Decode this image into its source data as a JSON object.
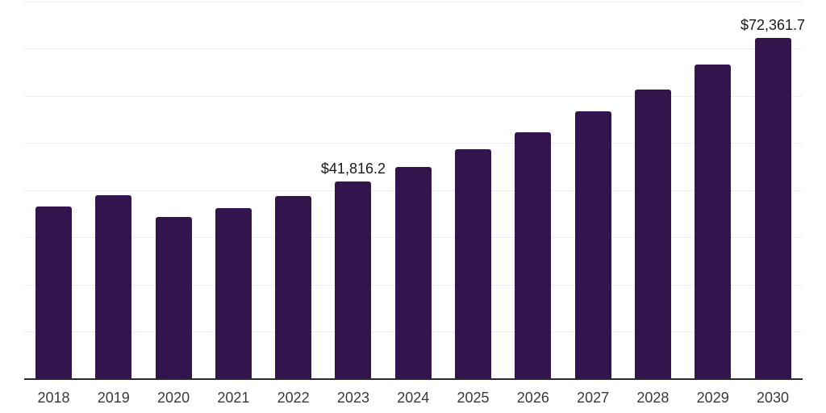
{
  "chart_data": {
    "type": "bar",
    "title": "",
    "xlabel": "",
    "ylabel": "",
    "categories": [
      "2018",
      "2019",
      "2020",
      "2021",
      "2022",
      "2023",
      "2024",
      "2025",
      "2026",
      "2027",
      "2028",
      "2029",
      "2030"
    ],
    "values": [
      36500,
      39000,
      34400,
      36200,
      38800,
      41816.2,
      45000,
      48700,
      52300,
      56700,
      61300,
      66600,
      72361.7
    ],
    "point_labels": [
      "",
      "",
      "",
      "",
      "",
      "$41,816.2",
      "",
      "",
      "",
      "",
      "",
      "",
      "$72,361.7"
    ],
    "ylim": [
      0,
      80000
    ],
    "gridline_step": 10000,
    "grid": "horizontal",
    "legend": "none",
    "y_tick_labels_visible": false,
    "colors": {
      "bar": "#33154d",
      "gridline": "#efefef",
      "axis": "#2b2b2b",
      "tick_label": "#3a3a3a",
      "data_label": "#1a1a1a",
      "background": "#ffffff"
    }
  }
}
